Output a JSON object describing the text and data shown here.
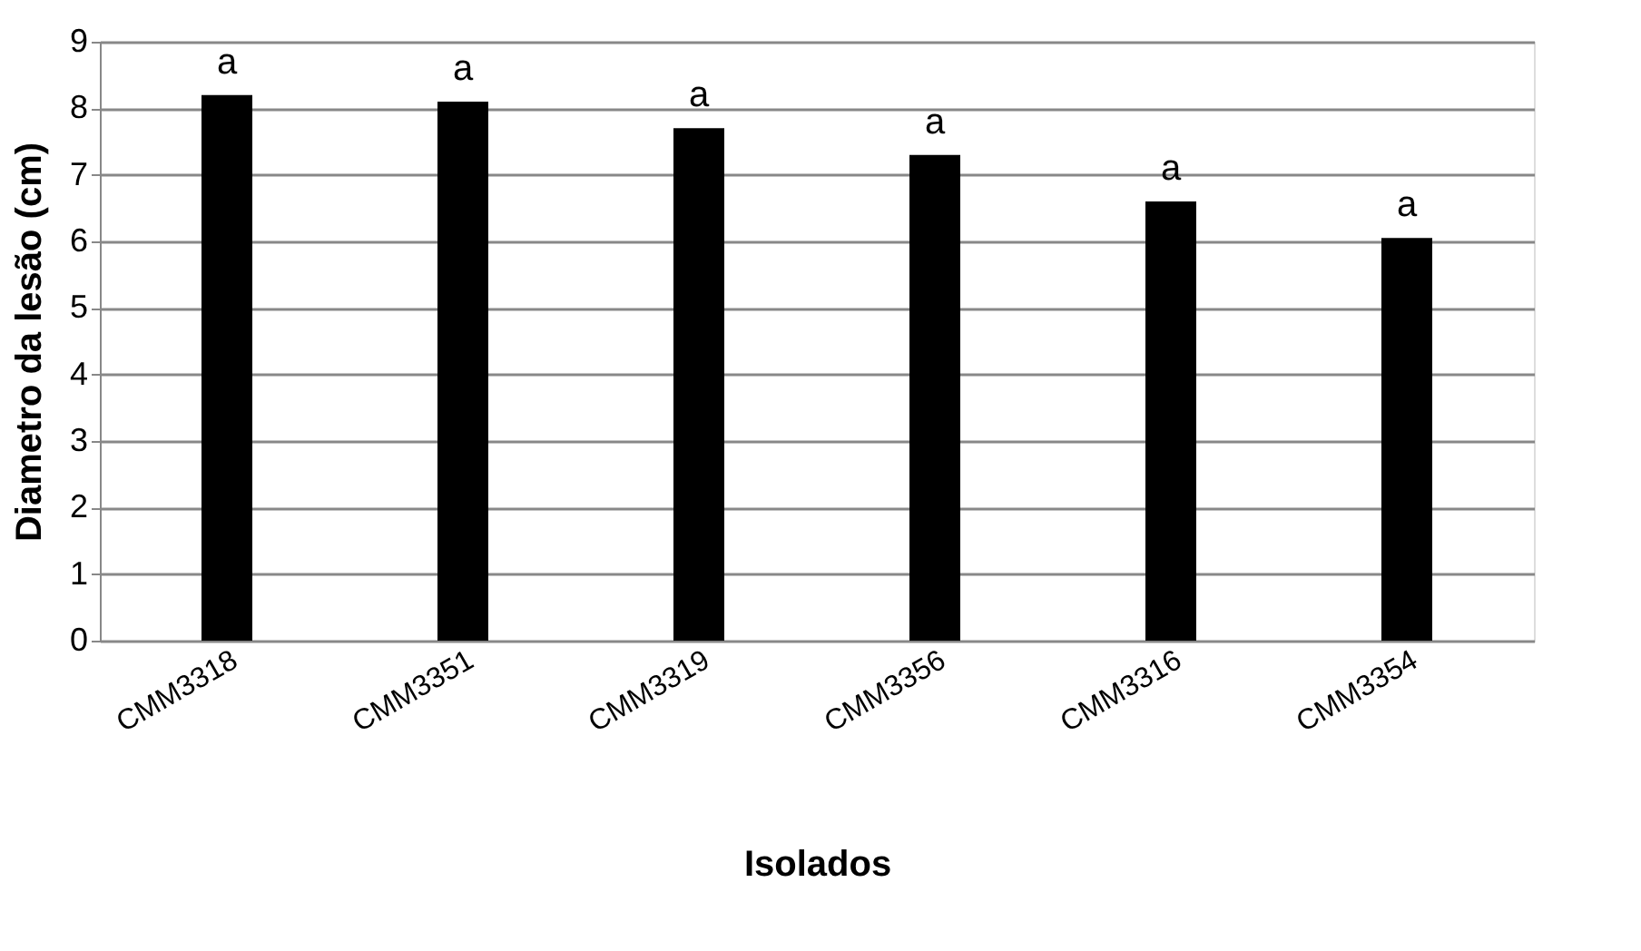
{
  "chart_data": {
    "type": "bar",
    "xlabel": "Isolados",
    "ylabel": "Diametro da lesão (cm)",
    "categories": [
      "CMM3318",
      "CMM3351",
      "CMM3319",
      "CMM3356",
      "CMM3316",
      "CMM3354"
    ],
    "values": [
      8.2,
      8.1,
      7.7,
      7.3,
      6.6,
      6.05
    ],
    "value_labels": [
      "a",
      "a",
      "a",
      "a",
      "a",
      "a"
    ],
    "color": "#000000",
    "ylim": [
      0,
      9
    ],
    "yticks": [
      0,
      1,
      2,
      3,
      4,
      5,
      6,
      7,
      8,
      9
    ],
    "grid": "y"
  }
}
